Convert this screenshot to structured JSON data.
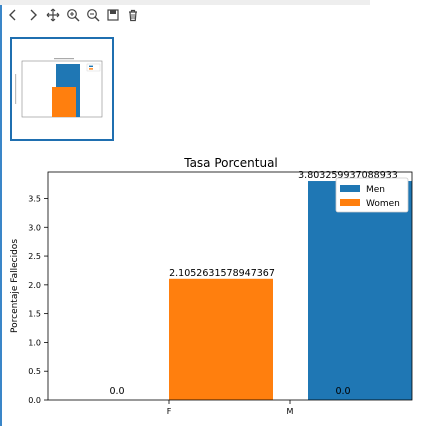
{
  "toolbar": {
    "buttons": [
      {
        "name": "back-icon"
      },
      {
        "name": "forward-icon"
      },
      {
        "name": "pan-icon"
      },
      {
        "name": "zoom-in-icon"
      },
      {
        "name": "zoom-out-icon"
      },
      {
        "name": "save-icon"
      },
      {
        "name": "delete-icon"
      }
    ]
  },
  "chart_data": {
    "type": "bar",
    "title": "Tasa Porcentual",
    "xlabel": "",
    "ylabel": "Porcentaje Fallecidos",
    "categories": [
      "F",
      "M"
    ],
    "ylim": [
      0,
      3.96
    ],
    "yticks": [
      "0.0",
      "0.5",
      "1.0",
      "1.5",
      "2.0",
      "2.5",
      "3.0",
      "3.5"
    ],
    "legend_position": "top-right",
    "series": [
      {
        "name": "Men",
        "color": "#1f77b4",
        "values": [
          0.0,
          3.803259937088933
        ],
        "labels": [
          "0.0",
          "3.803259937088933"
        ]
      },
      {
        "name": "Women",
        "color": "#ff7f0e",
        "values": [
          2.1052631578947367,
          0.0
        ],
        "labels": [
          "2.1052631578947367",
          "0.0"
        ]
      }
    ]
  }
}
